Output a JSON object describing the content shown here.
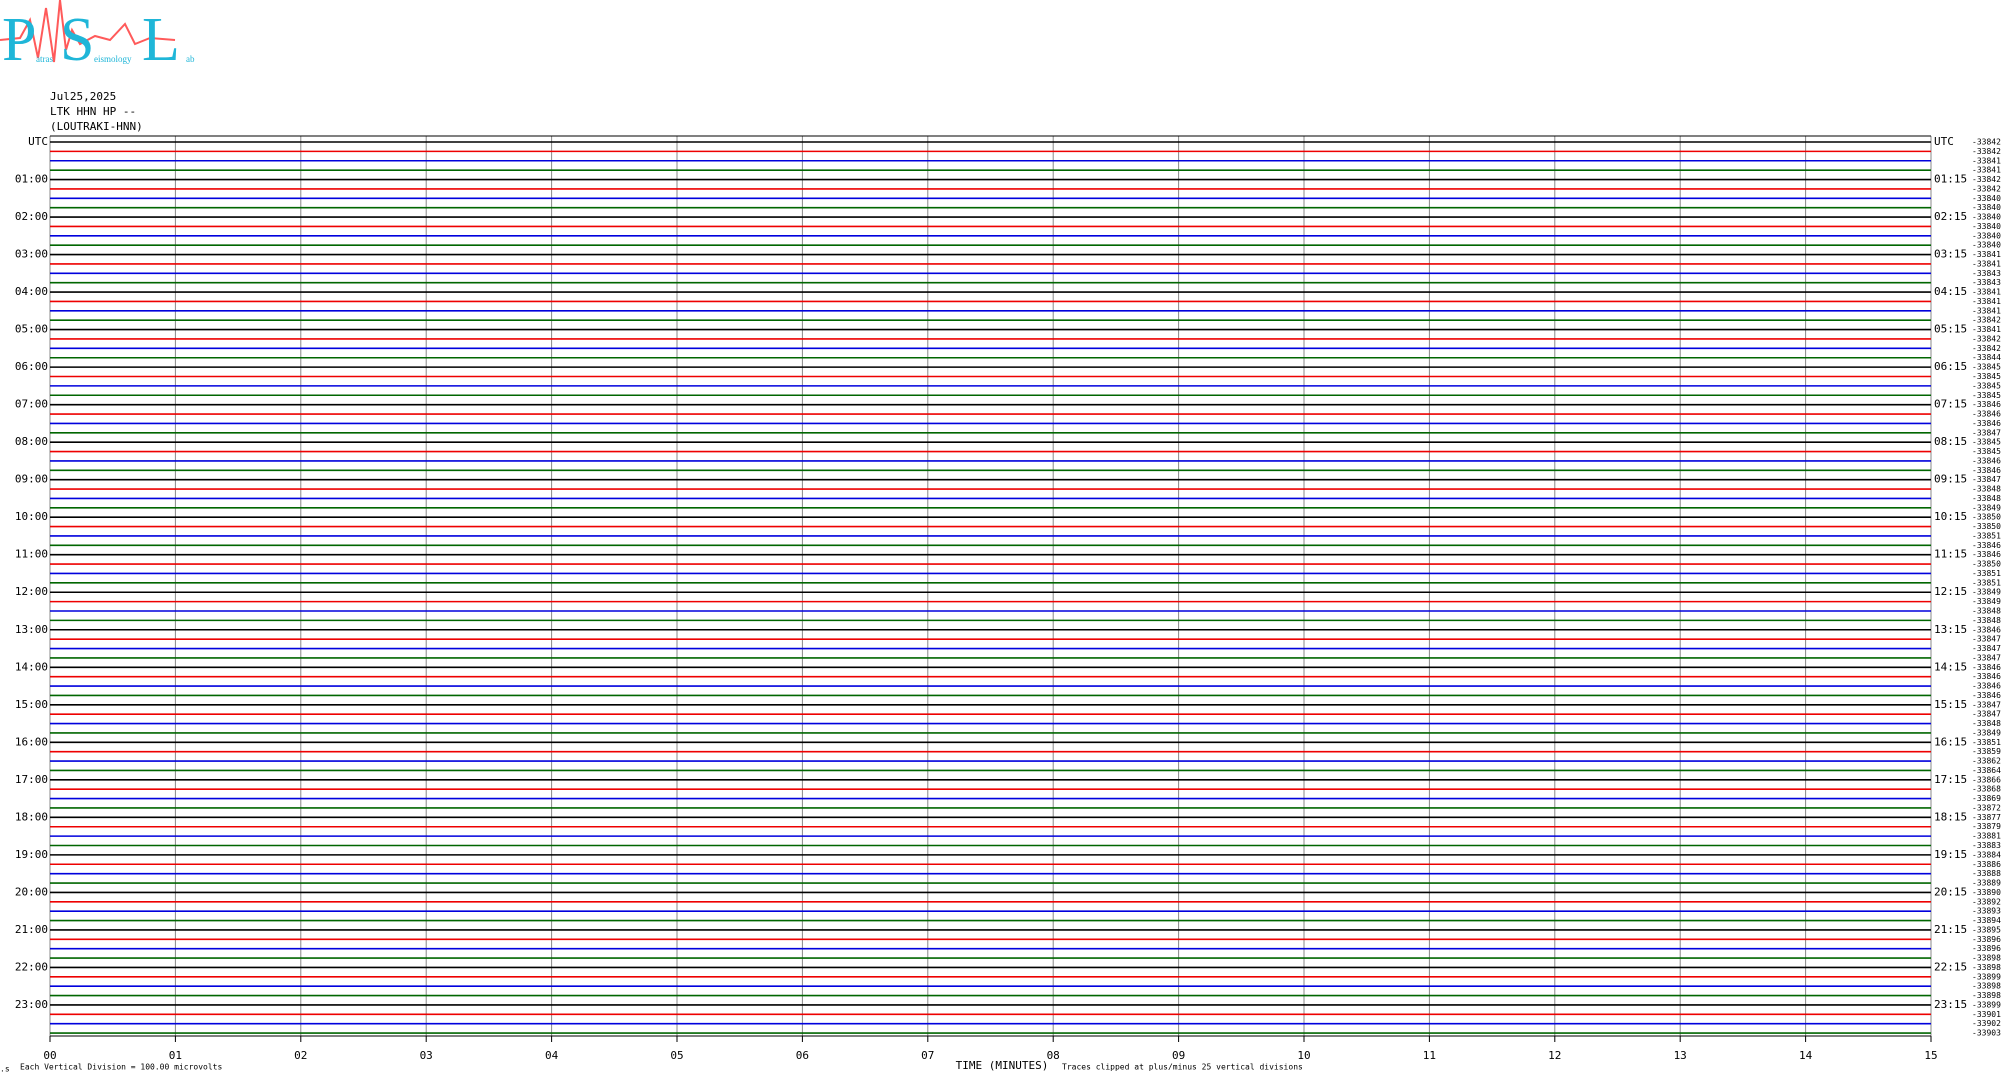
{
  "chart_data": {
    "type": "helicorder",
    "logo": {
      "letters": [
        "P",
        "S",
        "L"
      ],
      "words": [
        "atras",
        "eismology",
        "ab"
      ]
    },
    "header": [
      "Jul25,2025",
      "LTK HHN HP --",
      "(LOUTRAKI-HNN)"
    ],
    "xlabel": "TIME (MINUTES)",
    "footer_left": "Each Vertical Division =  100.00 microvolts",
    "footer_right": "Traces clipped at plus/minus 25 vertical divisions",
    "xlim": [
      0,
      15
    ],
    "xticks": [
      {
        "value": 0,
        "label": "00"
      },
      {
        "value": 1,
        "label": "01"
      },
      {
        "value": 2,
        "label": "02"
      },
      {
        "value": 3,
        "label": "03"
      },
      {
        "value": 4,
        "label": "04"
      },
      {
        "value": 5,
        "label": "05"
      },
      {
        "value": 6,
        "label": "06"
      },
      {
        "value": 7,
        "label": "07"
      },
      {
        "value": 8,
        "label": "08"
      },
      {
        "value": 9,
        "label": "09"
      },
      {
        "value": 10,
        "label": "10"
      },
      {
        "value": 11,
        "label": "11"
      },
      {
        "value": 12,
        "label": "12"
      },
      {
        "value": 13,
        "label": "13"
      },
      {
        "value": 14,
        "label": "14"
      },
      {
        "value": 15,
        "label": "15"
      }
    ],
    "grid": true,
    "trace_colors": [
      "#000000",
      "#ee0000",
      "#0000dd",
      "#006600"
    ],
    "left_labels": [
      "UTC",
      "01:00",
      "02:00",
      "03:00",
      "04:00",
      "05:00",
      "06:00",
      "07:00",
      "08:00",
      "09:00",
      "10:00",
      "11:00",
      "12:00",
      "13:00",
      "14:00",
      "15:00",
      "16:00",
      "17:00",
      "18:00",
      "19:00",
      "20:00",
      "21:00",
      "22:00",
      "23:00"
    ],
    "right_labels": [
      "UTC",
      "01:15",
      "02:15",
      "03:15",
      "04:15",
      "05:15",
      "06:15",
      "07:15",
      "08:15",
      "09:15",
      "10:15",
      "11:15",
      "12:15",
      "13:15",
      "14:15",
      "15:15",
      "16:15",
      "17:15",
      "18:15",
      "19:15",
      "20:15",
      "21:15",
      "22:15",
      "23:15"
    ],
    "trace_offsets": [
      "-33842",
      "-33842",
      "-33841",
      "-33841",
      "-33842",
      "-33842",
      "-33840",
      "-33840",
      "-33840",
      "-33840",
      "-33840",
      "-33840",
      "-33841",
      "-33841",
      "-33843",
      "-33843",
      "-33841",
      "-33841",
      "-33841",
      "-33842",
      "-33841",
      "-33842",
      "-33842",
      "-33844",
      "-33845",
      "-33845",
      "-33845",
      "-33845",
      "-33846",
      "-33846",
      "-33846",
      "-33847",
      "-33845",
      "-33845",
      "-33846",
      "-33846",
      "-33847",
      "-33848",
      "-33848",
      "-33849",
      "-33850",
      "-33850",
      "-33851",
      "-33846",
      "-33846",
      "-33850",
      "-33851",
      "-33851",
      "-33849",
      "-33849",
      "-33848",
      "-33848",
      "-33846",
      "-33847",
      "-33847",
      "-33847",
      "-33846",
      "-33846",
      "-33846",
      "-33846",
      "-33847",
      "-33847",
      "-33848",
      "-33849",
      "-33851",
      "-33859",
      "-33862",
      "-33864",
      "-33866",
      "-33868",
      "-33869",
      "-33872",
      "-33877",
      "-33879",
      "-33881",
      "-33883",
      "-33884",
      "-33886",
      "-33888",
      "-33889",
      "-33890",
      "-33892",
      "-33893",
      "-33894",
      "-33895",
      "-33896",
      "-33896",
      "-33898",
      "-33898",
      "-33899",
      "-33898",
      "-33898",
      "-33899",
      "-33901",
      "-33902",
      "-33903"
    ]
  }
}
